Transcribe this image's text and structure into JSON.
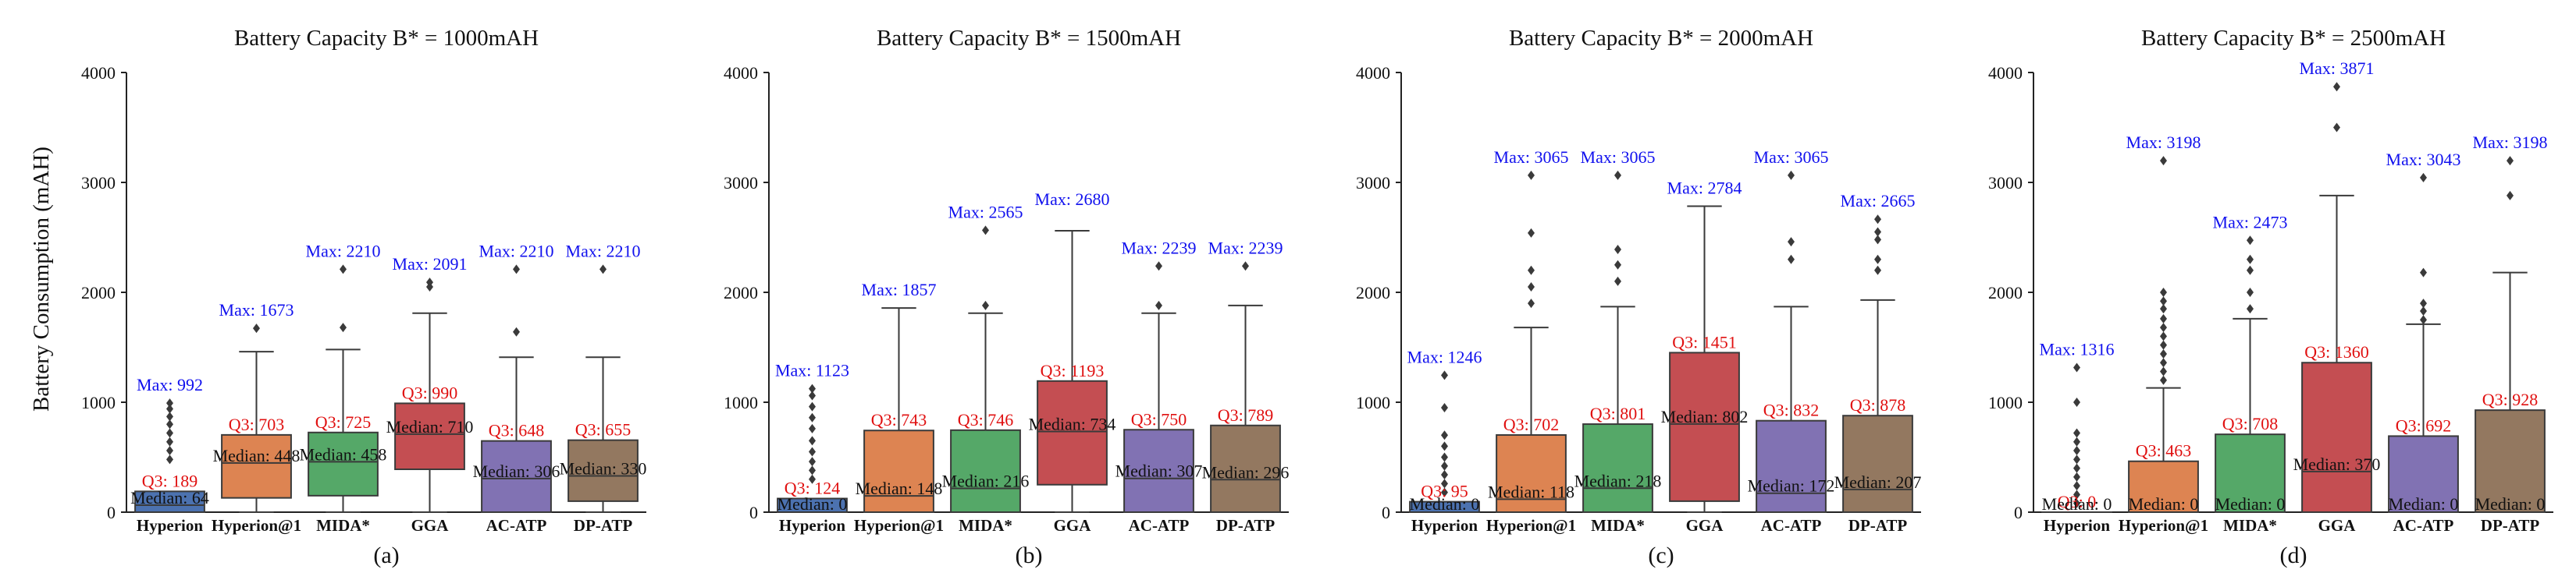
{
  "figure": {
    "ylabel": "Battery Consumption (mAH)",
    "y_ticks": [
      "0",
      "1000",
      "2000",
      "3000",
      "4000"
    ],
    "categories": [
      "Hyperion",
      "Hyperion@1",
      "MIDA*",
      "GGA",
      "AC-ATP",
      "DP-ATP"
    ],
    "max_prefix": "Max: ",
    "q3_prefix": "Q3: ",
    "median_prefix": "Median: "
  },
  "colors": {
    "Hyperion": "#4c72b0",
    "Hyperion@1": "#dd8452",
    "MIDA*": "#55a868",
    "GGA": "#c44e52",
    "AC-ATP": "#8172b3",
    "DP-ATP": "#937860",
    "max_label": "#1010ee",
    "q3_label": "#e01010",
    "axis": "#222222"
  },
  "chart_data": [
    {
      "type": "box",
      "title": "Battery Capacity B* = 1000mAH",
      "subfig": "(a)",
      "ylim": [
        0,
        4000
      ],
      "boxes": [
        {
          "cat": "Hyperion",
          "q1": 0,
          "median": 64,
          "q3": 189,
          "whisker_low": 0,
          "whisker_high": 189,
          "max": 992,
          "outliers": [
            480,
            560,
            640,
            720,
            800,
            870,
            940,
            992
          ]
        },
        {
          "cat": "Hyperion@1",
          "q1": 130,
          "median": 448,
          "q3": 703,
          "whisker_low": 0,
          "whisker_high": 1460,
          "max": 1673,
          "outliers": [
            1673
          ]
        },
        {
          "cat": "MIDA*",
          "q1": 150,
          "median": 458,
          "q3": 725,
          "whisker_low": 0,
          "whisker_high": 1480,
          "max": 2210,
          "outliers": [
            1680,
            2210
          ]
        },
        {
          "cat": "GGA",
          "q1": 390,
          "median": 710,
          "q3": 990,
          "whisker_low": 0,
          "whisker_high": 1810,
          "max": 2091,
          "outliers": [
            2050,
            2091
          ]
        },
        {
          "cat": "AC-ATP",
          "q1": 0,
          "median": 306,
          "q3": 648,
          "whisker_low": 0,
          "whisker_high": 1410,
          "max": 2210,
          "outliers": [
            1640,
            2210
          ]
        },
        {
          "cat": "DP-ATP",
          "q1": 100,
          "median": 330,
          "q3": 655,
          "whisker_low": 0,
          "whisker_high": 1410,
          "max": 2210,
          "outliers": [
            2210
          ]
        }
      ]
    },
    {
      "type": "box",
      "title": "Battery Capacity B* = 1500mAH",
      "subfig": "(b)",
      "ylim": [
        0,
        4000
      ],
      "boxes": [
        {
          "cat": "Hyperion",
          "q1": 0,
          "median": 0,
          "q3": 124,
          "whisker_low": 0,
          "whisker_high": 124,
          "max": 1123,
          "outliers": [
            300,
            380,
            460,
            550,
            650,
            760,
            860,
            960,
            1060,
            1123
          ]
        },
        {
          "cat": "Hyperion@1",
          "q1": 0,
          "median": 148,
          "q3": 743,
          "whisker_low": 0,
          "whisker_high": 1857,
          "max": 1857,
          "outliers": []
        },
        {
          "cat": "MIDA*",
          "q1": 0,
          "median": 216,
          "q3": 746,
          "whisker_low": 0,
          "whisker_high": 1810,
          "max": 2565,
          "outliers": [
            1880,
            2565
          ]
        },
        {
          "cat": "GGA",
          "q1": 250,
          "median": 734,
          "q3": 1193,
          "whisker_low": 0,
          "whisker_high": 2560,
          "max": 2680,
          "outliers": []
        },
        {
          "cat": "AC-ATP",
          "q1": 0,
          "median": 307,
          "q3": 750,
          "whisker_low": 0,
          "whisker_high": 1810,
          "max": 2239,
          "outliers": [
            1880,
            2239
          ]
        },
        {
          "cat": "DP-ATP",
          "q1": 0,
          "median": 296,
          "q3": 789,
          "whisker_low": 0,
          "whisker_high": 1880,
          "max": 2239,
          "outliers": [
            2239
          ]
        }
      ]
    },
    {
      "type": "box",
      "title": "Battery Capacity B* = 2000mAH",
      "subfig": "(c)",
      "ylim": [
        0,
        4000
      ],
      "boxes": [
        {
          "cat": "Hyperion",
          "q1": 0,
          "median": 0,
          "q3": 95,
          "whisker_low": 0,
          "whisker_high": 95,
          "max": 1246,
          "outliers": [
            180,
            260,
            340,
            420,
            500,
            600,
            700,
            950,
            1246
          ]
        },
        {
          "cat": "Hyperion@1",
          "q1": 0,
          "median": 118,
          "q3": 702,
          "whisker_low": 0,
          "whisker_high": 1680,
          "max": 3065,
          "outliers": [
            1900,
            2050,
            2200,
            2540,
            3065
          ]
        },
        {
          "cat": "MIDA*",
          "q1": 0,
          "median": 218,
          "q3": 801,
          "whisker_low": 0,
          "whisker_high": 1870,
          "max": 3065,
          "outliers": [
            2100,
            2250,
            2390,
            3065
          ]
        },
        {
          "cat": "GGA",
          "q1": 100,
          "median": 802,
          "q3": 1451,
          "whisker_low": 0,
          "whisker_high": 2784,
          "max": 2784,
          "outliers": []
        },
        {
          "cat": "AC-ATP",
          "q1": 0,
          "median": 172,
          "q3": 832,
          "whisker_low": 0,
          "whisker_high": 1870,
          "max": 3065,
          "outliers": [
            2300,
            2460,
            3065
          ]
        },
        {
          "cat": "DP-ATP",
          "q1": 0,
          "median": 207,
          "q3": 878,
          "whisker_low": 0,
          "whisker_high": 1930,
          "max": 2665,
          "outliers": [
            2200,
            2300,
            2480,
            2550,
            2665
          ]
        }
      ]
    },
    {
      "type": "box",
      "title": "Battery Capacity B* = 2500mAH",
      "subfig": "(d)",
      "ylim": [
        0,
        4000
      ],
      "boxes": [
        {
          "cat": "Hyperion",
          "q1": 0,
          "median": 0,
          "q3": 0,
          "whisker_low": 0,
          "whisker_high": 0,
          "max": 1316,
          "outliers": [
            80,
            160,
            240,
            320,
            400,
            480,
            560,
            640,
            720,
            1000,
            1316
          ]
        },
        {
          "cat": "Hyperion@1",
          "q1": 0,
          "median": 0,
          "q3": 463,
          "whisker_low": 0,
          "whisker_high": 1130,
          "max": 3198,
          "outliers": [
            1200,
            1280,
            1360,
            1440,
            1520,
            1600,
            1680,
            1760,
            1850,
            1920,
            2000,
            3198
          ]
        },
        {
          "cat": "MIDA*",
          "q1": 0,
          "median": 0,
          "q3": 708,
          "whisker_low": 0,
          "whisker_high": 1760,
          "max": 2473,
          "outliers": [
            1850,
            2000,
            2200,
            2300,
            2473
          ]
        },
        {
          "cat": "GGA",
          "q1": 0,
          "median": 370,
          "q3": 1360,
          "whisker_low": 0,
          "whisker_high": 2880,
          "max": 3871,
          "outliers": [
            3500,
            3871
          ]
        },
        {
          "cat": "AC-ATP",
          "q1": 0,
          "median": 0,
          "q3": 692,
          "whisker_low": 0,
          "whisker_high": 1710,
          "max": 3043,
          "outliers": [
            1750,
            1830,
            1900,
            2180,
            3043
          ]
        },
        {
          "cat": "DP-ATP",
          "q1": 0,
          "median": 0,
          "q3": 928,
          "whisker_low": 0,
          "whisker_high": 2180,
          "max": 3198,
          "outliers": [
            2880,
            3198
          ]
        }
      ]
    }
  ]
}
